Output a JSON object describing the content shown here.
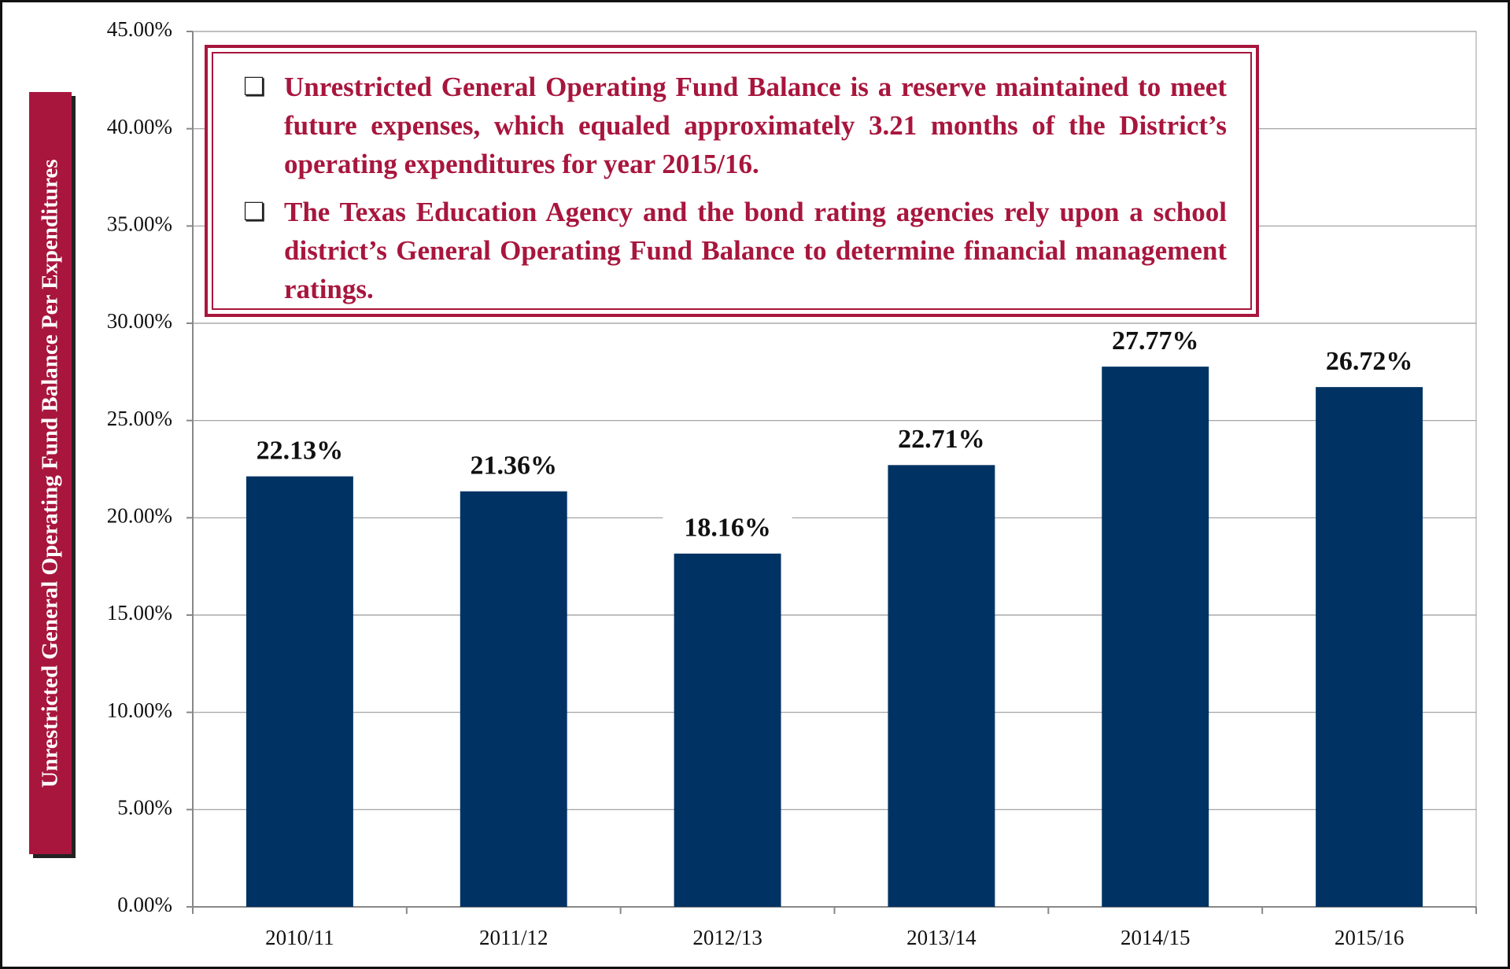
{
  "chart_data": {
    "type": "bar",
    "y_axis_label": "Unrestricted General Operating Fund Balance Per Expenditures",
    "annotations": [
      "Unrestricted General Operating Fund Balance is a reserve maintained to meet future expenses, which equaled approximately 3.21 months of the District’s operating expenditures for year 2015/16.",
      "The Texas Education Agency and the bond rating agencies rely upon a school district’s General Operating Fund Balance to determine financial management ratings."
    ],
    "categories": [
      "2010/11",
      "2011/12",
      "2012/13",
      "2013/14",
      "2014/15",
      "2015/16"
    ],
    "values": [
      22.13,
      21.36,
      18.16,
      22.71,
      27.77,
      26.72
    ],
    "value_labels": [
      "22.13%",
      "21.36%",
      "18.16%",
      "22.71%",
      "27.77%",
      "26.72%"
    ],
    "color": "#003263",
    "ylim": [
      0,
      45
    ],
    "yticks": [
      {
        "value": 0,
        "label": "0.00%"
      },
      {
        "value": 5,
        "label": "5.00%"
      },
      {
        "value": 10,
        "label": "10.00%"
      },
      {
        "value": 15,
        "label": "15.00%"
      },
      {
        "value": 20,
        "label": "20.00%"
      },
      {
        "value": 25,
        "label": "25.00%"
      },
      {
        "value": 30,
        "label": "30.00%"
      },
      {
        "value": 35,
        "label": "35.00%"
      },
      {
        "value": 40,
        "label": "40.00%"
      },
      {
        "value": 45,
        "label": "45.00%"
      }
    ],
    "grid": true
  }
}
